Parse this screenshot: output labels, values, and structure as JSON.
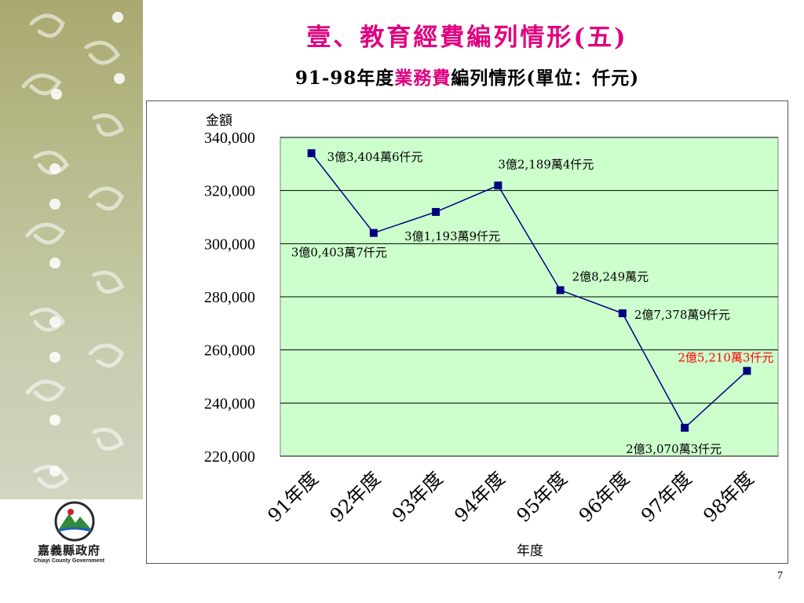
{
  "slide": {
    "title": "壹、教育經費編列情形(五)",
    "subtitle_prefix": "91-98年度",
    "subtitle_highlight": "業務費",
    "subtitle_suffix": "編列情形(單位：仟元)",
    "page_number": "7"
  },
  "logo": {
    "name": "嘉義縣政府",
    "english": "Chiayi County Government"
  },
  "colors": {
    "title": "#e0007f",
    "plot_bg": "#ccffcc",
    "series": "#000080",
    "highlight_label": "#ff0000",
    "grid": "#000000"
  },
  "chart_data": {
    "type": "line",
    "ylabel": "金額",
    "xlabel": "年度",
    "ylim": [
      220000,
      340000
    ],
    "y_ticks": [
      "220,000",
      "240,000",
      "260,000",
      "280,000",
      "300,000",
      "320,000",
      "340,000"
    ],
    "y_tick_values": [
      220000,
      240000,
      260000,
      280000,
      300000,
      320000,
      340000
    ],
    "categories": [
      "91年度",
      "92年度",
      "93年度",
      "94年度",
      "95年度",
      "96年度",
      "97年度",
      "98年度"
    ],
    "values": [
      334046,
      304037,
      311939,
      321894,
      282490,
      273789,
      230703,
      252103
    ],
    "data_labels": [
      "3億3,404萬6仟元",
      "3億0,403萬7仟元",
      "3億1,193萬9仟元",
      "3億2,189萬4仟元",
      "2億8,249萬元",
      "2億7,378萬9仟元",
      "2億3,070萬3仟元",
      "2億5,210萬3仟元"
    ],
    "highlighted_label_index": 7,
    "grid": true,
    "legend": "none"
  }
}
